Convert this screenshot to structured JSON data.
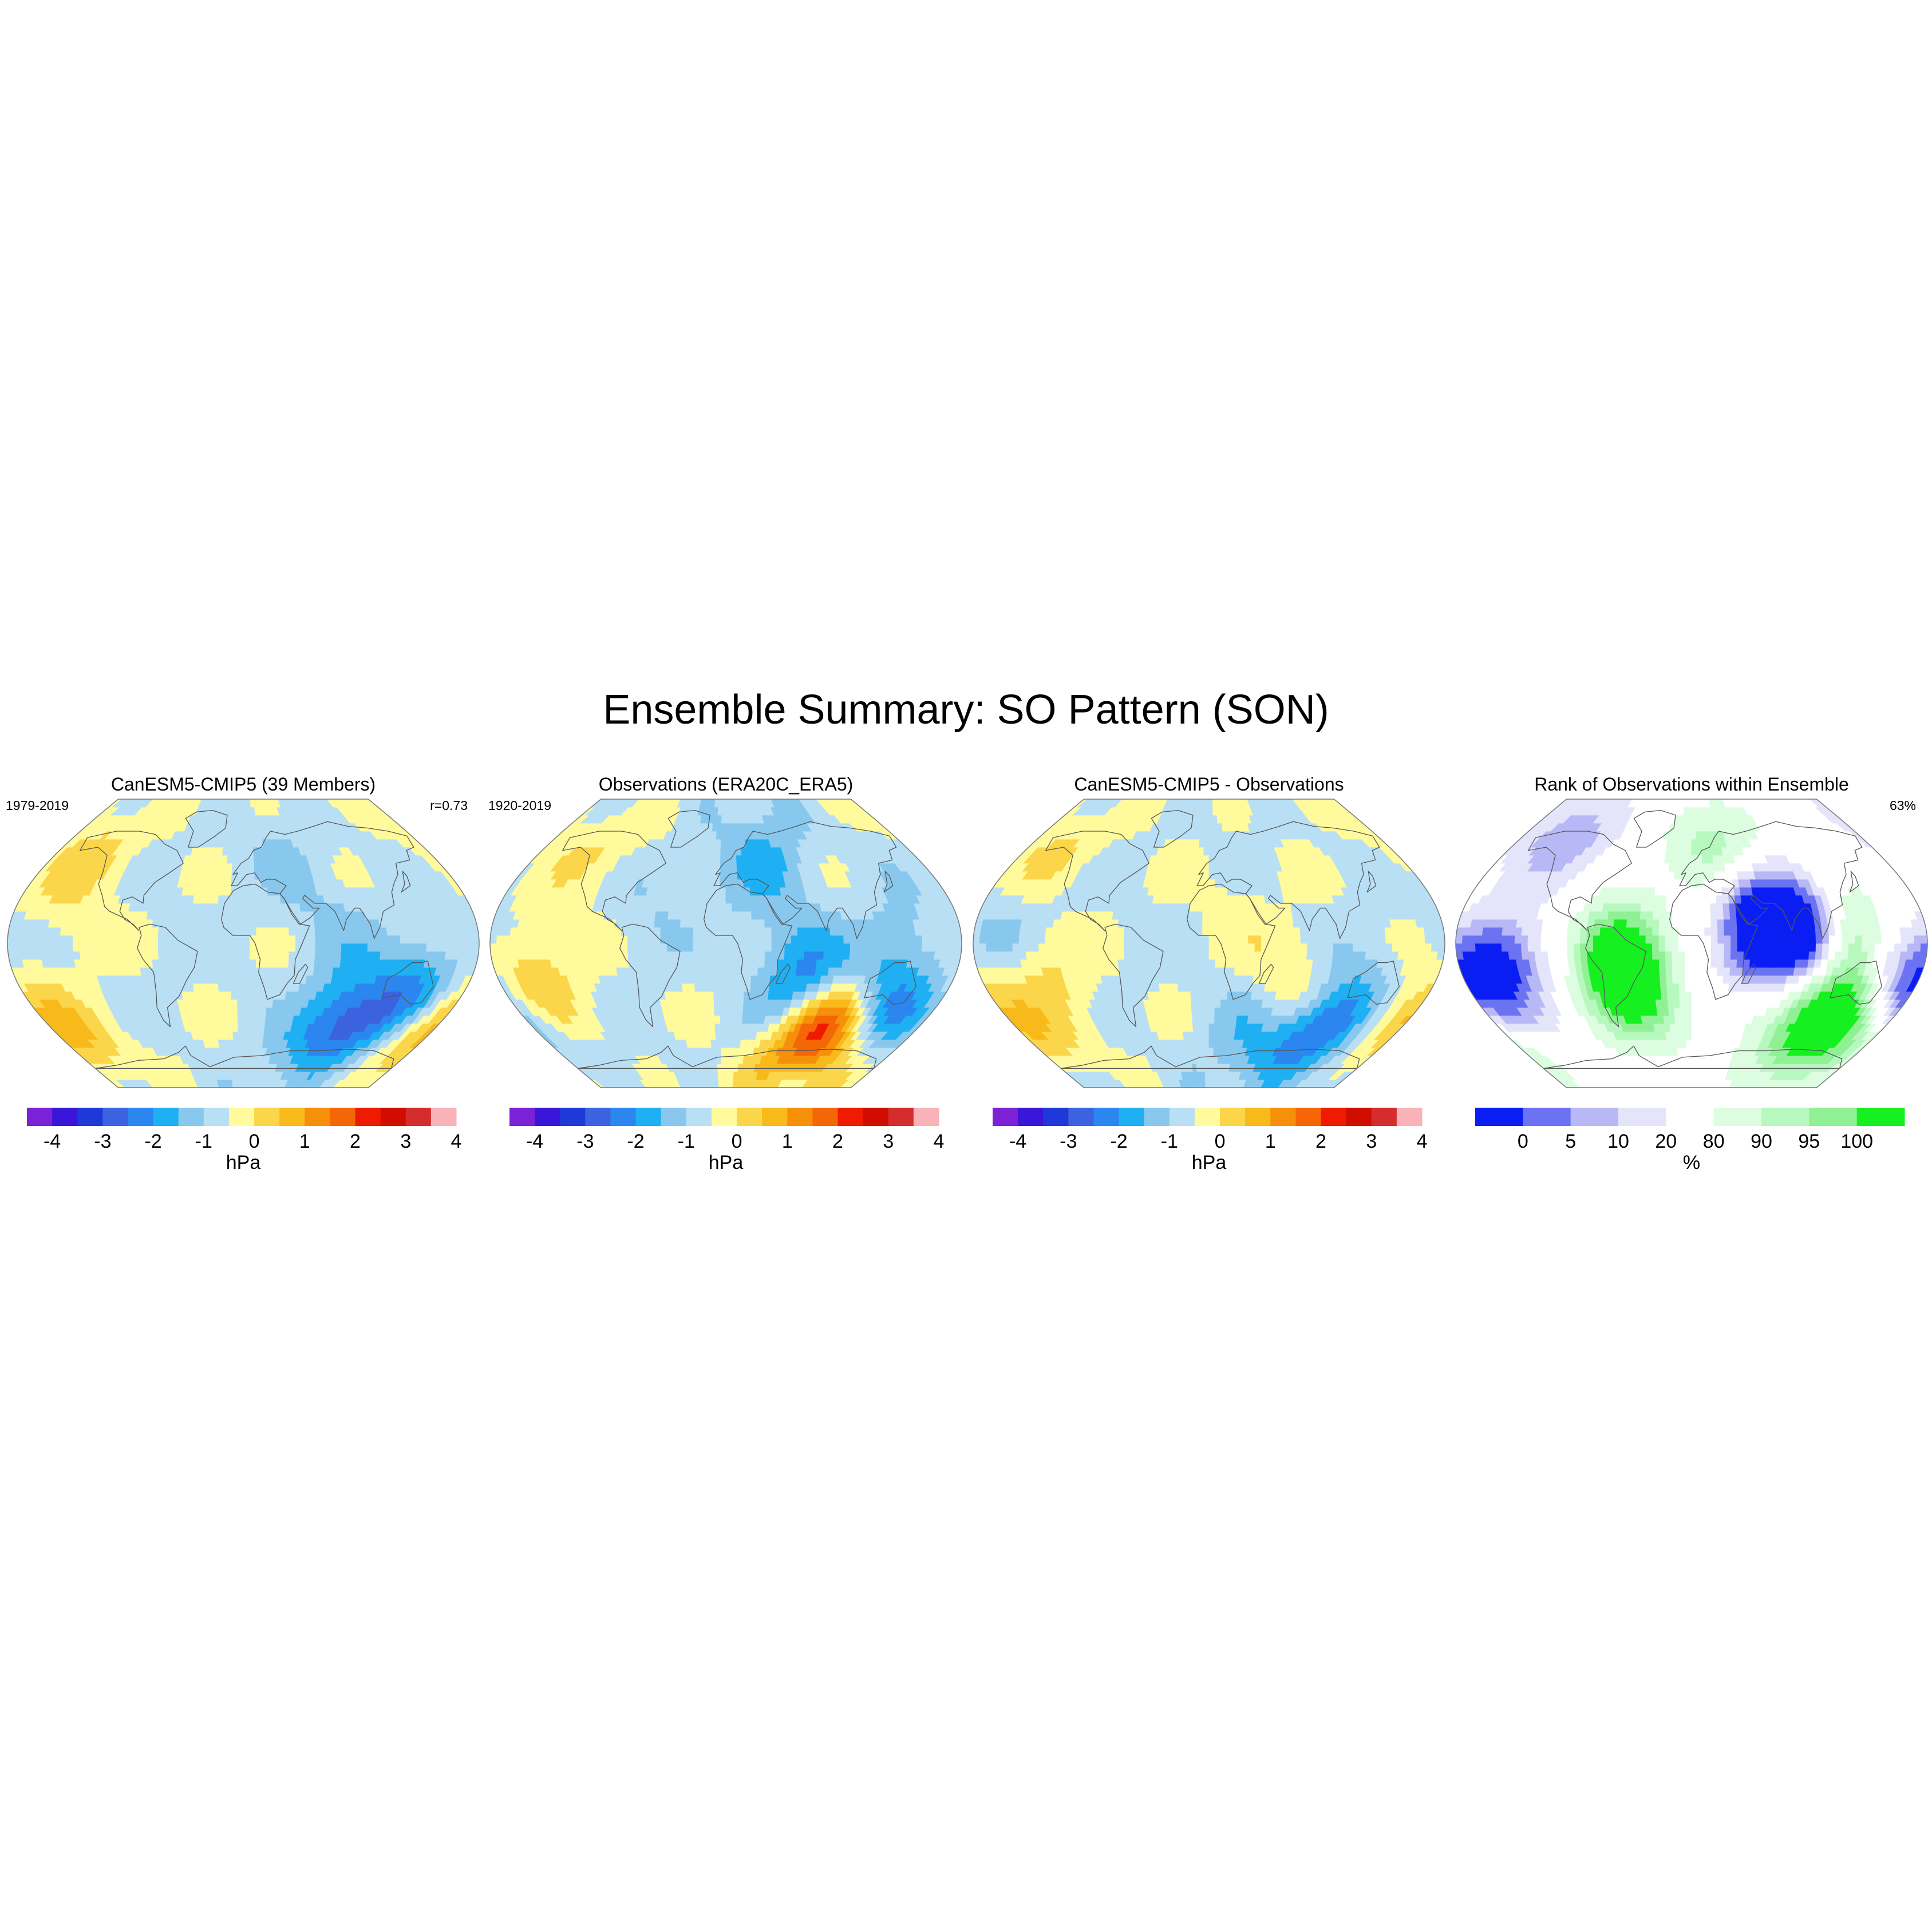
{
  "figure": {
    "title": "Ensemble Summary: SO Pattern (SON)"
  },
  "panels": [
    {
      "title": "CanESM5-CMIP5 (39 Members)",
      "left_text": "1979-2019",
      "right_text": "r=0.73",
      "colorbar": "anomaly",
      "blobs": [
        {
          "lon": 160,
          "lat": -50,
          "level": 1.0
        },
        {
          "lon": 180,
          "lat": -52,
          "level": 1.0
        },
        {
          "lon": 120,
          "lat": -40,
          "level": -1.0
        },
        {
          "lon": 150,
          "lat": -30,
          "level": -1.5
        },
        {
          "lon": 85,
          "lat": -48,
          "level": -1.2
        },
        {
          "lon": -150,
          "lat": 58,
          "level": 0.6
        },
        {
          "lon": -130,
          "lat": 25,
          "level": 0.4
        },
        {
          "lon": -155,
          "lat": -35,
          "level": 0.3
        },
        {
          "lon": 70,
          "lat": 5,
          "level": -0.5
        },
        {
          "lon": 90,
          "lat": -58,
          "level": -0.6
        },
        {
          "lon": 40,
          "lat": 50,
          "level": -0.4
        }
      ]
    },
    {
      "title": "Observations (ERA20C_ERA5)",
      "left_text": "1920-2019",
      "right_text": "",
      "colorbar": "anomaly",
      "blobs": [
        {
          "lon": 90,
          "lat": -52,
          "level": 3.8
        },
        {
          "lon": 70,
          "lat": -28,
          "level": -1.8
        },
        {
          "lon": 120,
          "lat": -35,
          "level": -1.2
        },
        {
          "lon": -150,
          "lat": -20,
          "level": 1.0
        },
        {
          "lon": -120,
          "lat": 55,
          "level": 0.6
        },
        {
          "lon": 160,
          "lat": -45,
          "level": -1.0
        },
        {
          "lon": 140,
          "lat": 5,
          "level": -0.6
        },
        {
          "lon": 20,
          "lat": 40,
          "level": -0.5
        },
        {
          "lon": 45,
          "lat": 60,
          "level": -0.6
        },
        {
          "lon": -60,
          "lat": 25,
          "level": -0.4
        },
        {
          "lon": 50,
          "lat": -5,
          "level": -0.6
        }
      ]
    },
    {
      "title": "CanESM5-CMIP5 - Observations",
      "left_text": "",
      "right_text": "",
      "colorbar": "anomaly",
      "blobs": [
        {
          "lon": 105,
          "lat": -55,
          "level": -2.0
        },
        {
          "lon": 170,
          "lat": -50,
          "level": 1.3
        },
        {
          "lon": 60,
          "lat": -30,
          "level": 1.0
        },
        {
          "lon": -130,
          "lat": -25,
          "level": 0.8
        },
        {
          "lon": 40,
          "lat": -48,
          "level": -1.0
        },
        {
          "lon": -150,
          "lat": 55,
          "level": 0.6
        },
        {
          "lon": 130,
          "lat": -30,
          "level": -0.5
        },
        {
          "lon": 20,
          "lat": 20,
          "level": 0.3
        },
        {
          "lon": -160,
          "lat": 10,
          "level": -0.5
        }
      ]
    },
    {
      "title": "Rank of Observations within Ensemble",
      "left_text": "",
      "right_text": "63%",
      "colorbar": "rank",
      "blobs": [
        {
          "lon": 90,
          "lat": 10,
          "level": -2.5
        },
        {
          "lon": 60,
          "lat": -5,
          "level": -2.0
        },
        {
          "lon": 50,
          "lat": 20,
          "level": -1.6
        },
        {
          "lon": -150,
          "lat": -15,
          "level": -2.0
        },
        {
          "lon": 165,
          "lat": -30,
          "level": -2.0
        },
        {
          "lon": -55,
          "lat": -5,
          "level": 2.0
        },
        {
          "lon": -50,
          "lat": -30,
          "level": 2.0
        },
        {
          "lon": 120,
          "lat": -45,
          "level": 2.2
        },
        {
          "lon": 150,
          "lat": -48,
          "level": 1.6
        },
        {
          "lon": 115,
          "lat": 10,
          "level": 1.6
        },
        {
          "lon": 65,
          "lat": -25,
          "level": 0.9
        },
        {
          "lon": 25,
          "lat": 55,
          "level": 1.2
        },
        {
          "lon": -130,
          "lat": 62,
          "level": -1.1
        }
      ]
    }
  ],
  "colorbars": {
    "anomaly": {
      "label": "hPa",
      "tick_labels": [
        "-4",
        "-3",
        "-2",
        "-1",
        "0",
        "1",
        "2",
        "3",
        "4"
      ],
      "colors": [
        "#7b22d6",
        "#3a16d8",
        "#1f39d8",
        "#3b63e0",
        "#2b86ef",
        "#1eb0f2",
        "#88c8ee",
        "#b8dff4",
        "#fffa9c",
        "#fbd64a",
        "#f8b91a",
        "#f6900a",
        "#f56606",
        "#ef1b00",
        "#d10d00",
        "#d52d2d",
        "#f9b3b8"
      ]
    },
    "rank": {
      "label": "%",
      "tick_labels": [
        "0",
        "5",
        "10",
        "20",
        "80",
        "90",
        "95",
        "100"
      ],
      "colors": [
        "#0a1ef4",
        "#6c73f2",
        "#b8b8f6",
        "#e4e4fa",
        "#ffffff",
        "#dcfde0",
        "#b7f8bf",
        "#8ff094",
        "#16f020"
      ]
    }
  }
}
